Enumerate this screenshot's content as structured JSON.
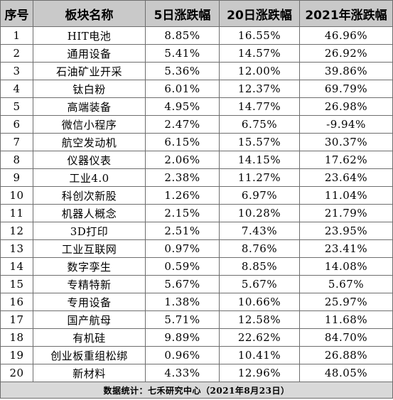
{
  "headers": [
    "序号",
    "板块名称",
    "5日涨跌幅",
    "20日涨跌幅",
    "2021年涨跌幅"
  ],
  "rows": [
    [
      "1",
      "HIT电池",
      "8.85%",
      "16.55%",
      "46.96%"
    ],
    [
      "2",
      "通用设备",
      "5.41%",
      "14.57%",
      "26.92%"
    ],
    [
      "3",
      "石油矿业开采",
      "5.36%",
      "12.00%",
      "39.86%"
    ],
    [
      "4",
      "钛白粉",
      "6.01%",
      "12.37%",
      "69.79%"
    ],
    [
      "5",
      "高端装备",
      "4.95%",
      "14.77%",
      "26.98%"
    ],
    [
      "6",
      "微信小程序",
      "2.47%",
      "6.75%",
      "-9.94%"
    ],
    [
      "7",
      "航空发动机",
      "6.15%",
      "15.57%",
      "30.37%"
    ],
    [
      "8",
      "仪器仪表",
      "2.06%",
      "14.15%",
      "17.62%"
    ],
    [
      "9",
      "工业4.0",
      "2.38%",
      "11.27%",
      "23.64%"
    ],
    [
      "10",
      "科创次新股",
      "1.26%",
      "6.97%",
      "11.04%"
    ],
    [
      "11",
      "机器人概念",
      "2.15%",
      "10.28%",
      "21.79%"
    ],
    [
      "12",
      "3D打印",
      "2.51%",
      "7.43%",
      "23.95%"
    ],
    [
      "13",
      "工业互联网",
      "0.97%",
      "8.76%",
      "23.41%"
    ],
    [
      "14",
      "数字孪生",
      "0.59%",
      "8.85%",
      "14.08%"
    ],
    [
      "15",
      "专精特新",
      "5.67%",
      "5.67%",
      "5.67%"
    ],
    [
      "16",
      "专用设备",
      "1.38%",
      "10.66%",
      "25.97%"
    ],
    [
      "17",
      "国产航母",
      "5.71%",
      "12.58%",
      "11.68%"
    ],
    [
      "18",
      "有机硅",
      "9.89%",
      "22.62%",
      "84.70%"
    ],
    [
      "19",
      "创业板重组松绑",
      "0.96%",
      "10.41%",
      "26.88%"
    ],
    [
      "20",
      "新材料",
      "4.33%",
      "12.96%",
      "48.05%"
    ]
  ],
  "footer": "数据统计：七禾研究中心（2021年8月23日）",
  "colors": {
    "header_bg": "#c9c9c9",
    "footer_bg": "#d9d9d9",
    "border": "#6e6e6e"
  }
}
